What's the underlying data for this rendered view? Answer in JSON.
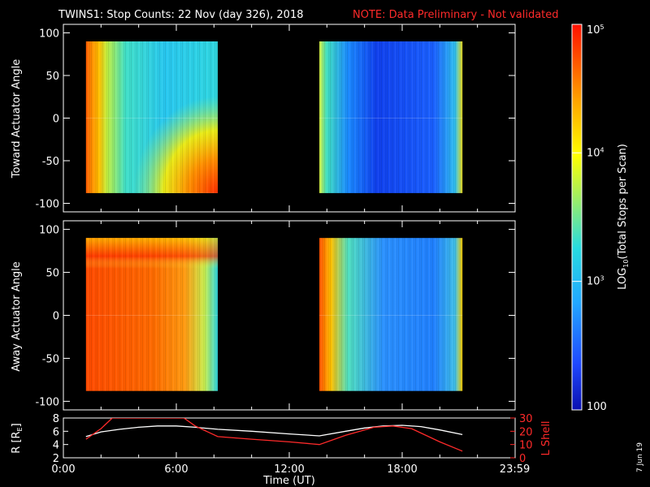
{
  "header": {
    "title": "TWINS1: Stop Counts: 22 Nov (day 326), 2018",
    "note": "NOTE: Data Preliminary - Not validated"
  },
  "footer": {
    "date_stamp": "7 Jun 19"
  },
  "colorbar": {
    "label": "LOG10(Total Stops per Scan)",
    "label_main": "LOG",
    "label_sub": "10",
    "label_tail": "(Total Stops per Scan)",
    "tick_labels": [
      "10^5",
      "10^4",
      "10^3",
      "100"
    ],
    "tick_main": [
      "10",
      "10",
      "10",
      "100"
    ],
    "tick_exp": [
      "5",
      "4",
      "3",
      ""
    ],
    "range_log10": [
      2,
      5
    ]
  },
  "colors": {
    "background": "#000000",
    "axes": "#ffffff",
    "note": "#ff2a2a",
    "r_trace": "#ffffff",
    "lshell_trace": "#ff2a2a"
  },
  "chart_data": [
    {
      "type": "heatmap",
      "ylabel": "Toward Actuator Angle",
      "ylim": [
        -110,
        110
      ],
      "yticks": [
        100,
        50,
        0,
        -50,
        -100
      ],
      "x_unit": "hours UT",
      "data_intervals_hours": [
        [
          1.2,
          8.2
        ],
        [
          13.6,
          21.2
        ]
      ],
      "y_range_data": [
        -88,
        90
      ]
    },
    {
      "type": "heatmap",
      "ylabel": "Away Actuator Angle",
      "ylim": [
        -110,
        110
      ],
      "yticks": [
        100,
        50,
        0,
        -50,
        -100
      ],
      "x_unit": "hours UT",
      "data_intervals_hours": [
        [
          1.2,
          8.2
        ],
        [
          13.6,
          21.2
        ]
      ],
      "y_range_data": [
        -88,
        90
      ]
    },
    {
      "type": "line",
      "xlabel": "Time (UT)",
      "ylabel_left": "R [RE]",
      "ylabel_left_main": "R [R",
      "ylabel_left_sub": "E",
      "ylabel_left_tail": "]",
      "ylabel_right": "L Shell",
      "x_ticks": [
        "0:00",
        "6:00",
        "12:00",
        "18:00",
        "23:59"
      ],
      "x_tick_hours": [
        0,
        6,
        12,
        18,
        23.98
      ],
      "xlim": [
        0,
        24
      ],
      "ylim_left": [
        2,
        8
      ],
      "yticks_left": [
        8,
        6,
        4,
        2
      ],
      "ylim_right": [
        0,
        30
      ],
      "yticks_right": [
        30,
        20,
        10,
        0
      ],
      "series": [
        {
          "name": "R",
          "x": [
            1.2,
            2,
            3,
            4,
            5,
            6,
            7,
            8.2,
            10,
            12,
            13.6,
            15,
            16,
            17,
            18,
            19,
            20,
            21.2
          ],
          "y": [
            5.2,
            5.9,
            6.3,
            6.6,
            6.8,
            6.8,
            6.6,
            6.3,
            6.0,
            5.6,
            5.3,
            6.0,
            6.5,
            6.8,
            6.9,
            6.7,
            6.2,
            5.5
          ]
        },
        {
          "name": "L Shell",
          "x": [
            1.2,
            2.0,
            2.6,
            6.4,
            7.0,
            8.2,
            10,
            12,
            13.6,
            15,
            16.5,
            17.5,
            18.5,
            20,
            21.2
          ],
          "y": [
            14,
            22,
            30,
            30,
            24,
            16,
            14,
            12,
            10,
            17,
            23,
            24,
            22,
            12,
            5
          ]
        }
      ]
    }
  ]
}
